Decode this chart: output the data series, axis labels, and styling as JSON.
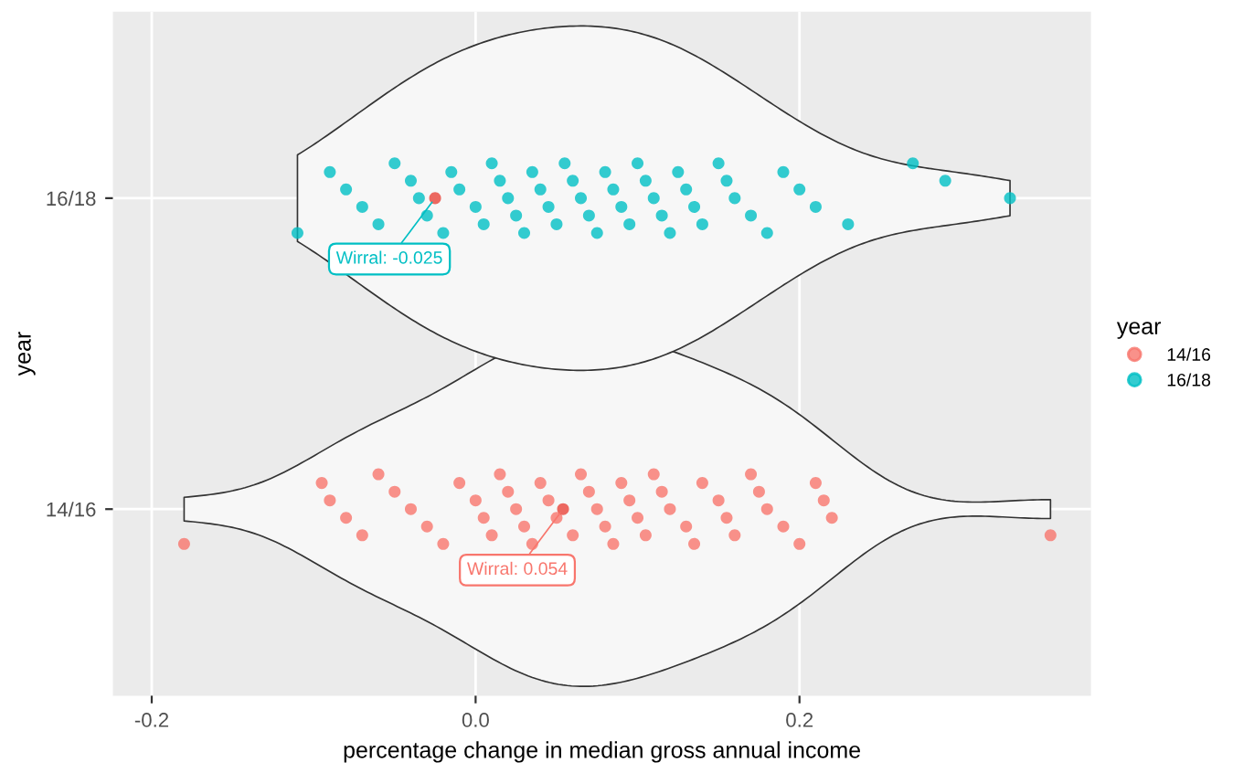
{
  "chart_data": {
    "type": "scatter",
    "orientation": "horizontal",
    "xlabel": "percentage change in median gross annual income",
    "ylabel": "year",
    "legend_title": "year",
    "legend": "right",
    "grid": true,
    "marker": "circle",
    "xlim": [
      -0.224,
      0.38
    ],
    "xticks": [
      -0.2,
      {
        "value": 0.0,
        "label": "0.0"
      },
      0.2
    ],
    "categories": [
      "16/18",
      "14/16"
    ],
    "series": [
      {
        "name": "14/16",
        "color": "#f8766d",
        "x": [
          "14/16",
          "14/16",
          "14/16",
          "14/16",
          "14/16",
          "14/16",
          "14/16",
          "14/16",
          "14/16",
          "14/16",
          "14/16",
          "14/16",
          "14/16",
          "14/16",
          "14/16",
          "14/16",
          "14/16",
          "14/16",
          "14/16",
          "14/16",
          "14/16",
          "14/16",
          "14/16",
          "14/16",
          "14/16",
          "14/16",
          "14/16",
          "14/16",
          "14/16",
          "14/16",
          "14/16",
          "14/16",
          "14/16",
          "14/16",
          "14/16",
          "14/16",
          "14/16",
          "14/16",
          "14/16",
          "14/16",
          "14/16",
          "14/16",
          "14/16",
          "14/16",
          "14/16",
          "14/16",
          "14/16",
          "14/16",
          "14/16",
          "14/16"
        ],
        "values": [
          -0.18,
          -0.095,
          -0.09,
          -0.08,
          -0.07,
          -0.06,
          -0.05,
          -0.04,
          -0.03,
          -0.02,
          -0.01,
          0.0,
          0.005,
          0.01,
          0.015,
          0.02,
          0.025,
          0.03,
          0.035,
          0.04,
          0.045,
          0.05,
          0.06,
          0.065,
          0.07,
          0.075,
          0.08,
          0.085,
          0.09,
          0.095,
          0.1,
          0.105,
          0.11,
          0.115,
          0.12,
          0.13,
          0.135,
          0.14,
          0.15,
          0.155,
          0.16,
          0.17,
          0.175,
          0.18,
          0.19,
          0.2,
          0.21,
          0.215,
          0.22,
          0.355
        ]
      },
      {
        "name": "16/18",
        "color": "#00bfc4",
        "x": [
          "16/18",
          "16/18",
          "16/18",
          "16/18",
          "16/18",
          "16/18",
          "16/18",
          "16/18",
          "16/18",
          "16/18",
          "16/18",
          "16/18",
          "16/18",
          "16/18",
          "16/18",
          "16/18",
          "16/18",
          "16/18",
          "16/18",
          "16/18",
          "16/18",
          "16/18",
          "16/18",
          "16/18",
          "16/18",
          "16/18",
          "16/18",
          "16/18",
          "16/18",
          "16/18",
          "16/18",
          "16/18",
          "16/18",
          "16/18",
          "16/18",
          "16/18",
          "16/18",
          "16/18",
          "16/18",
          "16/18",
          "16/18",
          "16/18",
          "16/18",
          "16/18",
          "16/18",
          "16/18",
          "16/18",
          "16/18",
          "16/18",
          "16/18",
          "16/18",
          "16/18",
          "16/18"
        ],
        "values": [
          -0.11,
          -0.09,
          -0.08,
          -0.07,
          -0.06,
          -0.05,
          -0.04,
          -0.035,
          -0.03,
          -0.02,
          -0.015,
          -0.01,
          0.0,
          0.005,
          0.01,
          0.015,
          0.02,
          0.025,
          0.03,
          0.035,
          0.04,
          0.045,
          0.05,
          0.055,
          0.06,
          0.065,
          0.07,
          0.075,
          0.08,
          0.085,
          0.09,
          0.095,
          0.1,
          0.105,
          0.11,
          0.115,
          0.12,
          0.125,
          0.13,
          0.135,
          0.14,
          0.15,
          0.155,
          0.16,
          0.17,
          0.18,
          0.19,
          0.2,
          0.21,
          0.23,
          0.27,
          0.29,
          0.33
        ]
      },
      {
        "color": "#e8433a",
        "x": [
          "16/18",
          "14/16"
        ],
        "values": [
          -0.025,
          0.054
        ]
      }
    ],
    "annotations": [
      {
        "text": "Wirral: -0.025",
        "x": -0.025,
        "y": "16/18"
      },
      {
        "text": "Wirral: 0.054",
        "x": 0.054,
        "y": "14/16"
      }
    ]
  }
}
